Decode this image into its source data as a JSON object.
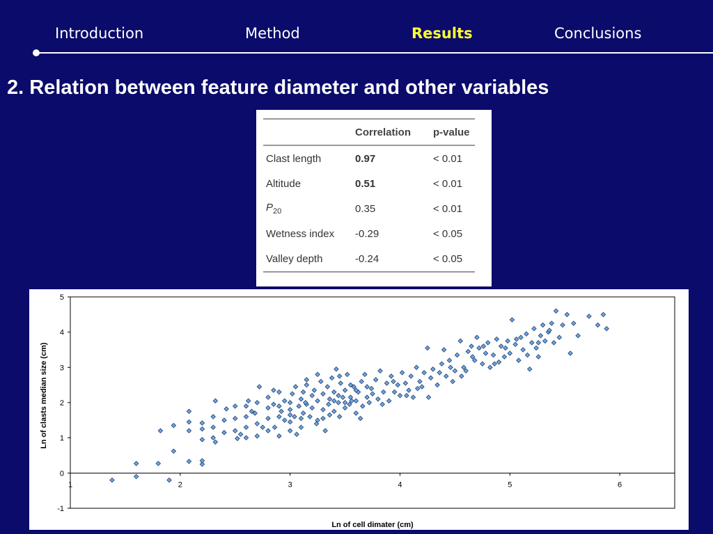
{
  "nav": {
    "items": [
      {
        "label": "Introduction"
      },
      {
        "label": "Method"
      },
      {
        "label": "Results"
      },
      {
        "label": "Conclusions"
      }
    ],
    "active": "Results"
  },
  "title": "2. Relation between feature diameter and other variables",
  "table": {
    "headers": [
      "",
      "Correlation",
      "p-value"
    ],
    "rows": [
      {
        "variable": "Clast length",
        "correlation": "0.97",
        "pvalue": "< 0.01",
        "bold": true
      },
      {
        "variable": "Altitude",
        "correlation": "0.51",
        "pvalue": "< 0.01",
        "bold": true
      },
      {
        "variable": "P",
        "variable_sub": "20",
        "correlation": "0.35",
        "pvalue": "< 0.01",
        "bold": false
      },
      {
        "variable": "Wetness index",
        "correlation": "-0.29",
        "pvalue": "< 0.05",
        "bold": false
      },
      {
        "variable": "Valley depth",
        "correlation": "-0.24",
        "pvalue": "< 0.05",
        "bold": false
      }
    ]
  },
  "chart_data": {
    "type": "scatter",
    "title": "",
    "xlabel": "Ln of cell dimater (cm)",
    "ylabel": "Ln of clasts median size (cm)",
    "xlim": [
      1,
      6.5
    ],
    "ylim": [
      -1,
      5
    ],
    "xticks": [
      1,
      2,
      3,
      4,
      5,
      6
    ],
    "yticks": [
      -1,
      0,
      1,
      2,
      3,
      4,
      5
    ],
    "grid": false,
    "marker_color": "#6fa8dc",
    "marker_edge": "#1f3b73",
    "series": [
      {
        "points": [
          [
            1.38,
            -0.2
          ],
          [
            1.6,
            -0.1
          ],
          [
            1.6,
            0.27
          ],
          [
            1.8,
            0.27
          ],
          [
            1.9,
            -0.2
          ],
          [
            1.94,
            0.62
          ],
          [
            1.82,
            1.2
          ],
          [
            1.94,
            1.35
          ],
          [
            2.08,
            0.33
          ],
          [
            2.2,
            0.25
          ],
          [
            2.2,
            0.35
          ],
          [
            2.08,
            1.2
          ],
          [
            2.08,
            1.75
          ],
          [
            2.08,
            1.45
          ],
          [
            2.2,
            1.42
          ],
          [
            2.2,
            1.25
          ],
          [
            2.2,
            0.95
          ],
          [
            2.3,
            1.0
          ],
          [
            2.3,
            1.3
          ],
          [
            2.3,
            1.6
          ],
          [
            2.32,
            2.05
          ],
          [
            2.32,
            0.88
          ],
          [
            2.4,
            1.15
          ],
          [
            2.4,
            1.5
          ],
          [
            2.42,
            1.82
          ],
          [
            2.5,
            1.9
          ],
          [
            2.5,
            1.55
          ],
          [
            2.5,
            1.2
          ],
          [
            2.52,
            0.98
          ],
          [
            2.6,
            1.0
          ],
          [
            2.6,
            1.3
          ],
          [
            2.6,
            1.6
          ],
          [
            2.6,
            1.9
          ],
          [
            2.62,
            2.05
          ],
          [
            2.68,
            1.7
          ],
          [
            2.7,
            2.0
          ],
          [
            2.7,
            1.4
          ],
          [
            2.7,
            1.05
          ],
          [
            2.72,
            2.45
          ],
          [
            2.8,
            1.2
          ],
          [
            2.8,
            1.55
          ],
          [
            2.8,
            1.85
          ],
          [
            2.8,
            2.15
          ],
          [
            2.85,
            1.95
          ],
          [
            2.86,
            1.3
          ],
          [
            2.9,
            1.05
          ],
          [
            2.9,
            1.6
          ],
          [
            2.9,
            2.3
          ],
          [
            2.92,
            1.75
          ],
          [
            2.95,
            2.05
          ],
          [
            3.0,
            1.2
          ],
          [
            3.0,
            1.45
          ],
          [
            3.0,
            1.8
          ],
          [
            3.0,
            2.0
          ],
          [
            3.02,
            2.25
          ],
          [
            3.04,
            1.6
          ],
          [
            3.05,
            2.45
          ],
          [
            3.08,
            1.9
          ],
          [
            3.1,
            1.3
          ],
          [
            3.1,
            2.1
          ],
          [
            3.12,
            1.7
          ],
          [
            3.12,
            2.3
          ],
          [
            3.15,
            1.95
          ],
          [
            3.15,
            2.5
          ],
          [
            3.18,
            1.6
          ],
          [
            3.2,
            2.2
          ],
          [
            3.2,
            1.85
          ],
          [
            3.22,
            2.35
          ],
          [
            3.25,
            2.05
          ],
          [
            3.25,
            1.5
          ],
          [
            3.28,
            2.6
          ],
          [
            3.3,
            1.8
          ],
          [
            3.3,
            2.25
          ],
          [
            3.32,
            1.2
          ],
          [
            3.34,
            2.45
          ],
          [
            3.35,
            1.95
          ],
          [
            3.36,
            2.1
          ],
          [
            3.38,
            2.7
          ],
          [
            3.4,
            1.75
          ],
          [
            3.4,
            2.3
          ],
          [
            3.42,
            2.95
          ],
          [
            3.44,
            2.0
          ],
          [
            3.45,
            1.6
          ],
          [
            3.46,
            2.55
          ],
          [
            3.48,
            2.15
          ],
          [
            3.5,
            1.85
          ],
          [
            3.5,
            2.35
          ],
          [
            3.52,
            2.8
          ],
          [
            3.54,
            1.95
          ],
          [
            3.55,
            2.15
          ],
          [
            3.58,
            2.45
          ],
          [
            3.6,
            1.7
          ],
          [
            3.6,
            2.05
          ],
          [
            3.62,
            2.3
          ],
          [
            3.65,
            2.6
          ],
          [
            3.66,
            1.9
          ],
          [
            3.68,
            2.8
          ],
          [
            3.7,
            2.15
          ],
          [
            3.7,
            2.45
          ],
          [
            3.72,
            2.0
          ],
          [
            3.75,
            2.25
          ],
          [
            3.78,
            2.65
          ],
          [
            3.8,
            2.1
          ],
          [
            3.82,
            2.9
          ],
          [
            3.85,
            2.3
          ],
          [
            3.88,
            2.55
          ],
          [
            3.9,
            2.05
          ],
          [
            3.92,
            2.75
          ],
          [
            3.95,
            2.3
          ],
          [
            3.98,
            2.5
          ],
          [
            4.0,
            2.2
          ],
          [
            4.02,
            2.85
          ],
          [
            4.05,
            2.55
          ],
          [
            4.08,
            2.35
          ],
          [
            4.1,
            2.75
          ],
          [
            4.12,
            2.15
          ],
          [
            4.15,
            3.0
          ],
          [
            4.18,
            2.6
          ],
          [
            4.2,
            2.45
          ],
          [
            4.22,
            2.85
          ],
          [
            4.25,
            3.55
          ],
          [
            4.28,
            2.7
          ],
          [
            4.3,
            2.95
          ],
          [
            4.34,
            2.5
          ],
          [
            4.38,
            3.1
          ],
          [
            4.4,
            3.5
          ],
          [
            4.42,
            2.75
          ],
          [
            4.45,
            3.2
          ],
          [
            4.48,
            2.6
          ],
          [
            4.5,
            2.9
          ],
          [
            4.52,
            3.35
          ],
          [
            4.55,
            3.75
          ],
          [
            4.58,
            3.0
          ],
          [
            4.6,
            2.9
          ],
          [
            4.62,
            3.45
          ],
          [
            4.65,
            3.6
          ],
          [
            4.68,
            3.2
          ],
          [
            4.7,
            3.85
          ],
          [
            4.72,
            3.55
          ],
          [
            4.75,
            3.1
          ],
          [
            4.78,
            3.4
          ],
          [
            4.8,
            3.7
          ],
          [
            4.82,
            3.0
          ],
          [
            4.85,
            3.35
          ],
          [
            4.88,
            3.8
          ],
          [
            4.9,
            3.15
          ],
          [
            4.92,
            3.6
          ],
          [
            4.95,
            3.3
          ],
          [
            4.98,
            3.75
          ],
          [
            5.0,
            3.4
          ],
          [
            5.02,
            4.35
          ],
          [
            5.05,
            3.65
          ],
          [
            5.08,
            3.2
          ],
          [
            5.1,
            3.85
          ],
          [
            5.12,
            3.5
          ],
          [
            5.15,
            3.95
          ],
          [
            5.18,
            2.95
          ],
          [
            5.2,
            3.7
          ],
          [
            5.22,
            4.1
          ],
          [
            5.24,
            3.55
          ],
          [
            5.26,
            3.3
          ],
          [
            5.28,
            3.9
          ],
          [
            5.3,
            4.2
          ],
          [
            5.32,
            3.75
          ],
          [
            5.35,
            4.0
          ],
          [
            5.38,
            4.25
          ],
          [
            5.4,
            3.7
          ],
          [
            5.42,
            4.6
          ],
          [
            5.45,
            3.85
          ],
          [
            5.48,
            4.2
          ],
          [
            5.52,
            4.5
          ],
          [
            5.55,
            3.4
          ],
          [
            5.58,
            4.25
          ],
          [
            5.62,
            3.9
          ],
          [
            5.72,
            4.45
          ],
          [
            5.8,
            4.2
          ],
          [
            5.85,
            4.5
          ],
          [
            5.88,
            4.1
          ],
          [
            2.55,
            1.1
          ],
          [
            2.65,
            1.75
          ],
          [
            2.75,
            1.3
          ],
          [
            2.85,
            2.35
          ],
          [
            2.95,
            1.5
          ],
          [
            3.06,
            1.1
          ],
          [
            3.14,
            2.0
          ],
          [
            3.24,
            1.4
          ],
          [
            3.36,
            1.65
          ],
          [
            3.44,
            2.2
          ],
          [
            3.56,
            2.05
          ],
          [
            3.64,
            1.55
          ],
          [
            3.74,
            2.4
          ],
          [
            3.84,
            1.95
          ],
          [
            3.94,
            2.6
          ],
          [
            4.06,
            2.2
          ],
          [
            4.16,
            2.4
          ],
          [
            4.26,
            2.15
          ],
          [
            4.36,
            2.85
          ],
          [
            4.46,
            3.0
          ],
          [
            4.56,
            2.75
          ],
          [
            4.66,
            3.3
          ],
          [
            4.76,
            3.6
          ],
          [
            4.86,
            3.1
          ],
          [
            4.96,
            3.55
          ],
          [
            5.06,
            3.8
          ],
          [
            5.16,
            3.35
          ],
          [
            5.26,
            3.7
          ],
          [
            5.36,
            4.05
          ],
          [
            3.15,
            2.65
          ],
          [
            3.25,
            2.8
          ],
          [
            3.55,
            2.5
          ],
          [
            3.45,
            2.75
          ],
          [
            3.0,
            1.65
          ],
          [
            2.9,
            1.9
          ],
          [
            3.1,
            1.55
          ],
          [
            3.3,
            1.55
          ],
          [
            3.5,
            2.0
          ],
          [
            3.6,
            2.35
          ],
          [
            3.4,
            2.05
          ]
        ]
      }
    ]
  }
}
